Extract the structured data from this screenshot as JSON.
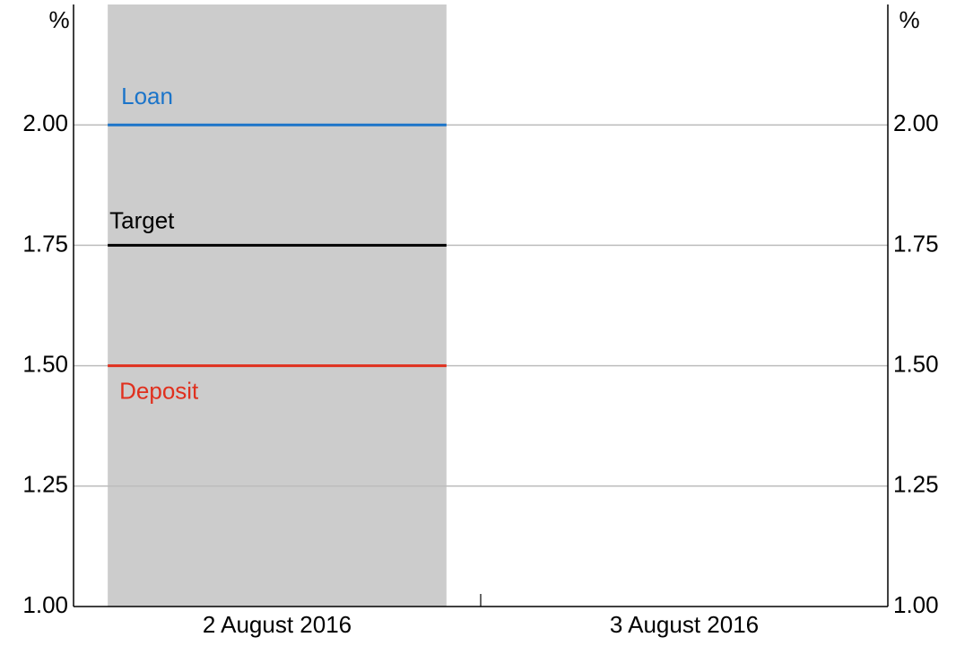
{
  "chart_data": {
    "type": "line",
    "y_unit": "%",
    "categories": [
      "2 August 2016",
      "3 August 2016"
    ],
    "series": [
      {
        "name": "Loan",
        "color": "#1b74c9",
        "values": [
          2.0,
          null
        ]
      },
      {
        "name": "Target",
        "color": "#000000",
        "values": [
          1.75,
          null
        ]
      },
      {
        "name": "Deposit",
        "color": "#e0301e",
        "values": [
          1.5,
          null
        ]
      }
    ],
    "ylim": [
      1.0,
      2.25
    ],
    "yticks": [
      {
        "value": 1.0,
        "label": "1.00"
      },
      {
        "value": 1.25,
        "label": "1.25"
      },
      {
        "value": 1.5,
        "label": "1.50"
      },
      {
        "value": 1.75,
        "label": "1.75"
      },
      {
        "value": 2.0,
        "label": "2.00"
      }
    ],
    "grid": true,
    "shade_color": "#cccccc"
  }
}
